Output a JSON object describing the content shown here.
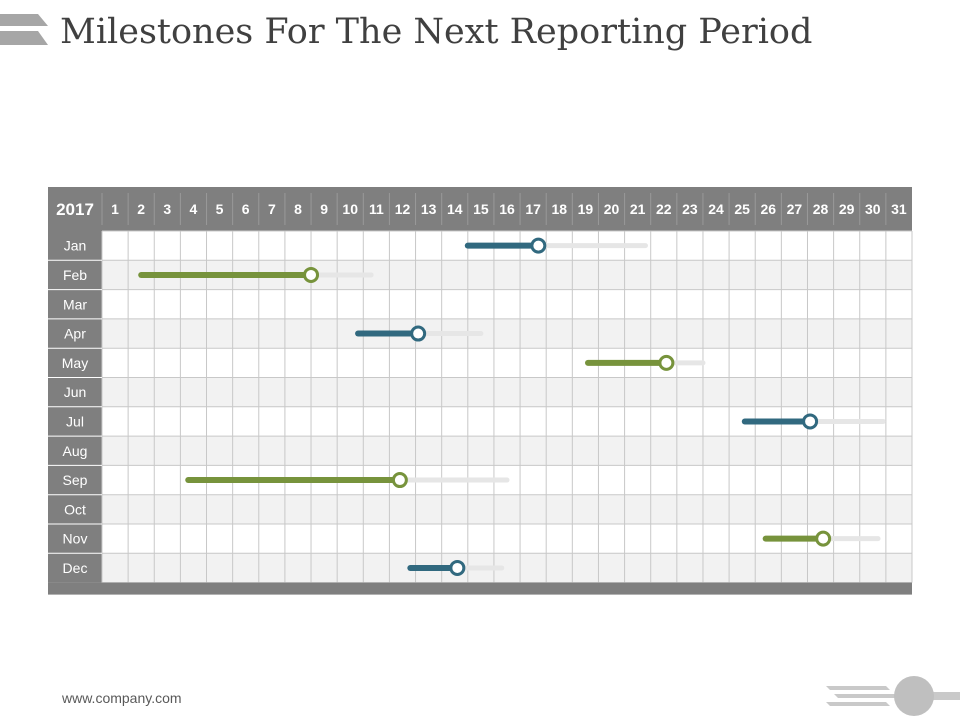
{
  "page": {
    "title": "Milestones For The Next Reporting Period",
    "footer_url": "www.company.com"
  },
  "colors": {
    "header_bg": "#7f7f7f",
    "header_text": "#ffffff",
    "green": "#77933c",
    "teal": "#31697f",
    "track": "#e6e6e6",
    "row_alt": "#f2f2f2",
    "grid_line": "#c8c8c8"
  },
  "chart_data": {
    "type": "gantt",
    "year": "2017",
    "days": [
      "1",
      "2",
      "3",
      "4",
      "5",
      "6",
      "7",
      "8",
      "9",
      "10",
      "11",
      "12",
      "13",
      "14",
      "15",
      "16",
      "17",
      "18",
      "19",
      "20",
      "21",
      "22",
      "23",
      "24",
      "25",
      "26",
      "27",
      "28",
      "29",
      "30",
      "31"
    ],
    "rows": [
      {
        "month": "Jan",
        "color": "teal",
        "start": 14.5,
        "progress": 17.2,
        "end": 21.3
      },
      {
        "month": "Feb",
        "color": "green",
        "start": 2.0,
        "progress": 8.5,
        "end": 10.8
      },
      {
        "month": "Mar"
      },
      {
        "month": "Apr",
        "color": "teal",
        "start": 10.3,
        "progress": 12.6,
        "end": 15.0
      },
      {
        "month": "May",
        "color": "green",
        "start": 19.1,
        "progress": 22.1,
        "end": 23.5
      },
      {
        "month": "Jun"
      },
      {
        "month": "Jul",
        "color": "teal",
        "start": 25.1,
        "progress": 27.6,
        "end": 30.4
      },
      {
        "month": "Aug"
      },
      {
        "month": "Sep",
        "color": "green",
        "start": 3.8,
        "progress": 11.9,
        "end": 16.0
      },
      {
        "month": "Oct"
      },
      {
        "month": "Nov",
        "color": "green",
        "start": 25.9,
        "progress": 28.1,
        "end": 30.2
      },
      {
        "month": "Dec",
        "color": "teal",
        "start": 12.3,
        "progress": 14.1,
        "end": 15.8
      }
    ]
  }
}
